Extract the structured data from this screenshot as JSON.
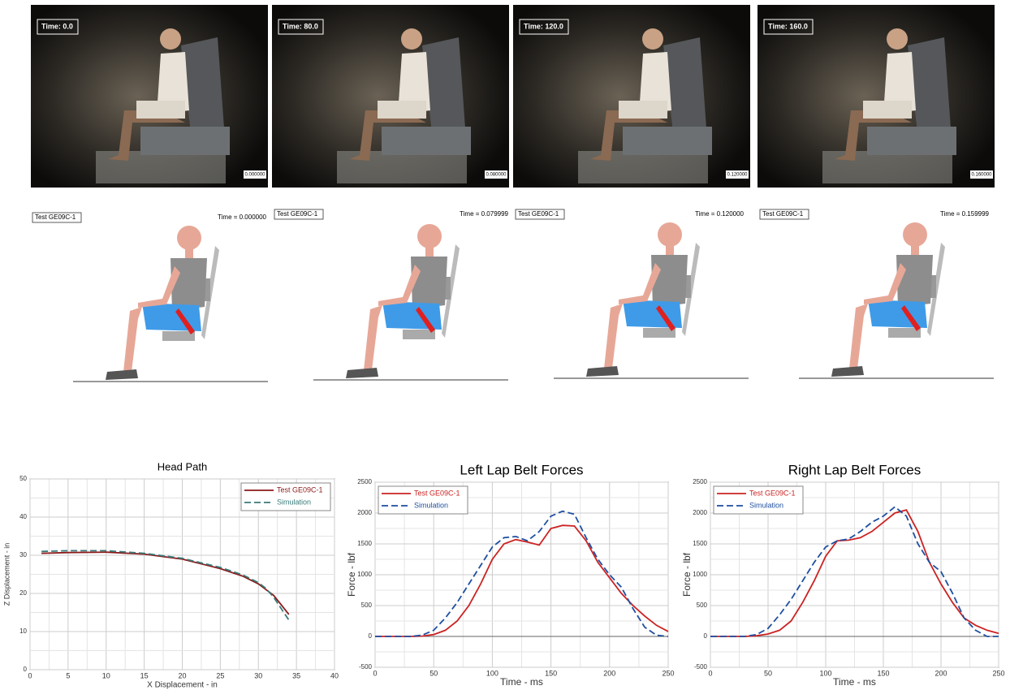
{
  "photos": [
    {
      "time_label": "Time: 0.0",
      "stamp": "0.000000"
    },
    {
      "time_label": "Time: 80.0",
      "stamp": "0.080000"
    },
    {
      "time_label": "Time: 120.0",
      "stamp": "0.120000"
    },
    {
      "time_label": "Time: 160.0",
      "stamp": "0.160000"
    }
  ],
  "simulations": [
    {
      "test_label": "Test  GE09C-1",
      "time_label": "Time = 0.000000"
    },
    {
      "test_label": "Test  GE09C-1",
      "time_label": "Time = 0.079999"
    },
    {
      "test_label": "Test  GE09C-1",
      "time_label": "Time = 0.120000"
    },
    {
      "test_label": "Test  GE09C-1",
      "time_label": "Time = 0.159999"
    }
  ],
  "chart_data": [
    {
      "type": "line",
      "title": "Head Path",
      "x_label": "X Displacement - in",
      "y_label": "Z Displacement - in",
      "x": [
        1.5,
        5,
        10,
        15,
        20,
        25,
        28,
        30,
        31,
        32,
        33,
        34
      ],
      "series": [
        {
          "name": "Test GE09C-1",
          "color": "#8b1a1a",
          "style": "solid",
          "values": [
            30.5,
            30.7,
            30.8,
            30.3,
            29,
            26.5,
            24.5,
            22.5,
            21,
            19.5,
            17,
            14.5
          ]
        },
        {
          "name": "Simulation",
          "color": "#3a7a7a",
          "style": "dashed",
          "values": [
            31,
            31.2,
            31.2,
            30.5,
            29.2,
            26.8,
            24.8,
            22.8,
            21.3,
            19,
            16,
            13
          ]
        }
      ],
      "xlim": [
        0,
        40
      ],
      "xticks": [
        0,
        5,
        10,
        15,
        20,
        25,
        30,
        35,
        40
      ],
      "ylim": [
        0,
        50
      ],
      "yticks": [
        0,
        10,
        20,
        30,
        40,
        50
      ],
      "grid": true,
      "legend": "upper right"
    },
    {
      "type": "line",
      "title": "Left Lap Belt Forces",
      "x_label": "Time - ms",
      "y_label": "Force - lbf",
      "x": [
        0,
        10,
        20,
        30,
        40,
        50,
        60,
        70,
        80,
        90,
        100,
        110,
        120,
        130,
        140,
        150,
        160,
        170,
        180,
        190,
        200,
        210,
        220,
        230,
        240,
        250
      ],
      "series": [
        {
          "name": "Test GE09C-1",
          "color": "#cc2222",
          "style": "solid",
          "values": [
            0,
            0,
            0,
            0,
            5,
            30,
            100,
            250,
            500,
            850,
            1250,
            1500,
            1570,
            1530,
            1480,
            1750,
            1800,
            1790,
            1550,
            1200,
            950,
            700,
            500,
            330,
            180,
            80
          ]
        },
        {
          "name": "Simulation",
          "color": "#1f4fa0",
          "style": "dashed",
          "values": [
            0,
            0,
            0,
            0,
            20,
            100,
            300,
            550,
            850,
            1150,
            1450,
            1600,
            1620,
            1550,
            1700,
            1950,
            2030,
            1980,
            1600,
            1250,
            1000,
            800,
            450,
            150,
            20,
            0
          ]
        }
      ],
      "xlim": [
        0,
        250
      ],
      "xticks": [
        0,
        50,
        100,
        150,
        200,
        250
      ],
      "ylim": [
        -500,
        2500
      ],
      "yticks": [
        -500,
        0,
        500,
        1000,
        1500,
        2000,
        2500
      ],
      "grid": true,
      "legend": "upper left"
    },
    {
      "type": "line",
      "title": "Right Lap Belt Forces",
      "x_label": "Time - ms",
      "y_label": "Force - lbf",
      "x": [
        0,
        10,
        20,
        30,
        40,
        50,
        60,
        70,
        80,
        90,
        100,
        110,
        120,
        130,
        140,
        150,
        160,
        170,
        180,
        190,
        200,
        210,
        220,
        230,
        240,
        250
      ],
      "series": [
        {
          "name": "Test GE09C-1",
          "color": "#cc2222",
          "style": "solid",
          "values": [
            0,
            0,
            0,
            0,
            10,
            40,
            100,
            250,
            550,
            900,
            1300,
            1550,
            1560,
            1600,
            1700,
            1850,
            2000,
            2050,
            1700,
            1200,
            850,
            550,
            300,
            180,
            100,
            50
          ]
        },
        {
          "name": "Simulation",
          "color": "#1f4fa0",
          "style": "dashed",
          "values": [
            0,
            0,
            0,
            0,
            30,
            130,
            350,
            600,
            900,
            1200,
            1450,
            1550,
            1580,
            1700,
            1850,
            1950,
            2100,
            1950,
            1500,
            1200,
            1050,
            700,
            300,
            100,
            0,
            0
          ]
        }
      ],
      "xlim": [
        0,
        250
      ],
      "xticks": [
        0,
        50,
        100,
        150,
        200,
        250
      ],
      "ylim": [
        -500,
        2500
      ],
      "yticks": [
        -500,
        0,
        500,
        1000,
        1500,
        2000,
        2500
      ],
      "grid": true,
      "legend": "upper left"
    }
  ]
}
